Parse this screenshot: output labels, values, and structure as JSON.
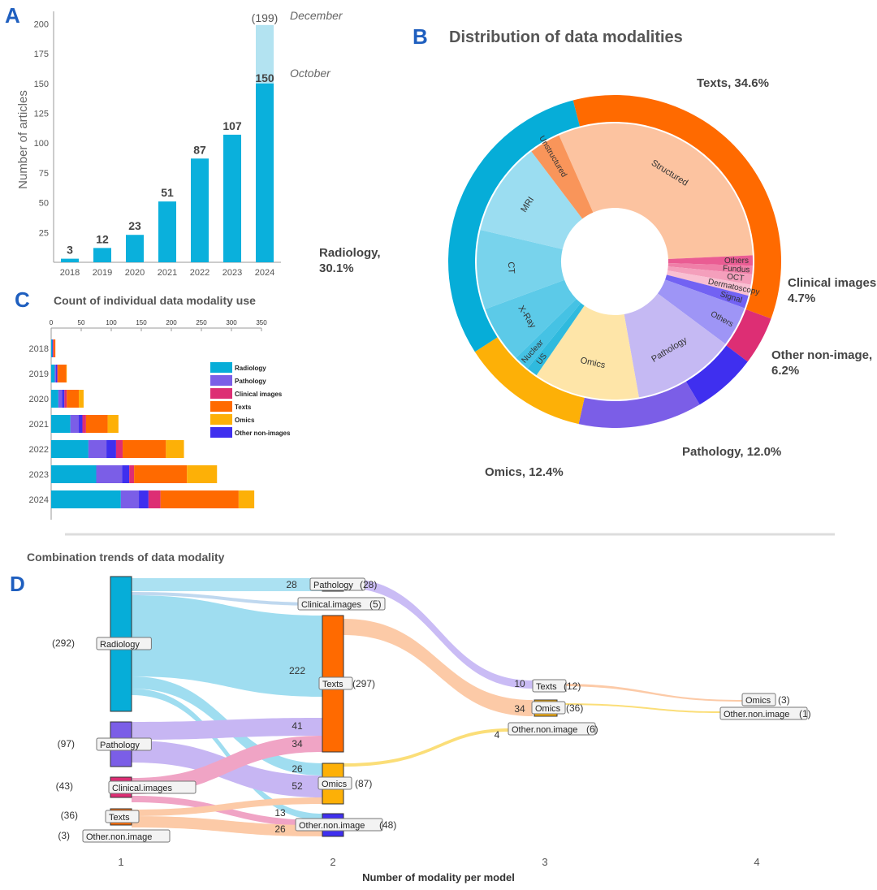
{
  "panels": {
    "A": "A",
    "B": "B",
    "C": "C",
    "D": "D"
  },
  "chart_data": [
    {
      "id": "A",
      "type": "bar",
      "title": "",
      "ylabel": "Number of articles",
      "categories": [
        "2018",
        "2019",
        "2020",
        "2021",
        "2022",
        "2023",
        "2024"
      ],
      "values": [
        3,
        12,
        23,
        51,
        87,
        107,
        150
      ],
      "value_labels": [
        "3",
        "12",
        "23",
        "51",
        "87",
        "107",
        "150"
      ],
      "extension": {
        "category": "2024",
        "value": 199,
        "label": "(199)",
        "annotation": "December",
        "color": "#b3e3f1"
      },
      "annotation_150": "October",
      "yticks": [
        25,
        50,
        75,
        100,
        125,
        150,
        175,
        200
      ],
      "ylim": [
        0,
        205
      ],
      "color": "#0ab0dc"
    },
    {
      "id": "B",
      "type": "pie",
      "title": "Distribution of data modalities",
      "outer": [
        {
          "name": "Texts",
          "label": "Texts, 34.6%",
          "value": 34.6,
          "color": "#ff6a00"
        },
        {
          "name": "Clinical images",
          "label": "Clinical images, 4.7%",
          "value": 4.7,
          "color": "#dd2e74"
        },
        {
          "name": "Other non-image",
          "label": "Other non-image, 6.2%",
          "value": 6.2,
          "color": "#3f2fef"
        },
        {
          "name": "Pathology",
          "label": "Pathology, 12.0%",
          "value": 12.0,
          "color": "#7b5ee7"
        },
        {
          "name": "Omics",
          "label": "Omics, 12.4%",
          "value": 12.4,
          "color": "#fdb007"
        },
        {
          "name": "Radiology",
          "label": "Radiology, 30.1%",
          "value": 30.1,
          "color": "#06add8"
        }
      ],
      "inner": [
        {
          "name": "Structured",
          "value": 30.9,
          "color": "#fcc3a0"
        },
        {
          "name": "Others",
          "value": 1.2,
          "color": "#ea5c93"
        },
        {
          "name": "Fundus",
          "value": 1.0,
          "color": "#f07fa8"
        },
        {
          "name": "OCT",
          "value": 1.2,
          "color": "#f49fbc"
        },
        {
          "name": "Dermatoscopy",
          "value": 1.3,
          "color": "#f9bfd2"
        },
        {
          "name": "Signal",
          "value": 1.5,
          "color": "#7262f3"
        },
        {
          "name": "Others",
          "value": 4.7,
          "color": "#9e95f6"
        },
        {
          "name": "Pathology",
          "value": 12.0,
          "color": "#c5b9f3"
        },
        {
          "name": "Omics",
          "value": 12.4,
          "color": "#fee5a8"
        },
        {
          "name": "US",
          "value": 1.3,
          "color": "#2fbade"
        },
        {
          "name": "Nuclear",
          "value": 1.8,
          "color": "#45c2e4"
        },
        {
          "name": "X-Ray",
          "value": 6.7,
          "color": "#5ccae8"
        },
        {
          "name": "CT",
          "value": 9.3,
          "color": "#78d3ec"
        },
        {
          "name": "MRI",
          "value": 11.0,
          "color": "#9bddf1"
        },
        {
          "name": "Unstructured",
          "value": 3.7,
          "color": "#f9955a"
        }
      ]
    },
    {
      "id": "C",
      "type": "bar",
      "orientation": "horizontal-stacked",
      "title": "Count of individual data modality use",
      "categories": [
        "2018",
        "2019",
        "2020",
        "2021",
        "2022",
        "2023",
        "2024"
      ],
      "xticks": [
        "0",
        "50",
        "100",
        "150",
        "200",
        "250",
        "300",
        "350"
      ],
      "xlim": [
        0,
        350
      ],
      "series": [
        {
          "name": "Radiology",
          "color": "#06add8",
          "values": [
            2,
            6,
            12,
            32,
            62,
            75,
            116
          ]
        },
        {
          "name": "Pathology",
          "color": "#7b5ee7",
          "values": [
            0,
            2,
            6,
            14,
            30,
            43,
            30
          ]
        },
        {
          "name": "Clinical images",
          "color": "#dd2e74",
          "values": [
            1,
            1,
            4,
            6,
            11,
            8,
            20
          ]
        },
        {
          "name": "Texts",
          "color": "#ff6a00",
          "values": [
            3,
            14,
            20,
            36,
            72,
            88,
            130
          ]
        },
        {
          "name": "Omics",
          "color": "#fdb007",
          "values": [
            0,
            1,
            8,
            18,
            30,
            50,
            26
          ]
        },
        {
          "name": "Other non-images",
          "color": "#3f2fef",
          "values": [
            1,
            2,
            4,
            6,
            16,
            12,
            16
          ]
        }
      ]
    },
    {
      "id": "D",
      "type": "sankey",
      "title": "Combination trends of data modality",
      "xlabel": "Number of modality per model",
      "stages": [
        "1",
        "2",
        "3",
        "4"
      ],
      "nodes": [
        {
          "label": "Radiology",
          "count": "(292)"
        },
        {
          "label": "Pathology",
          "count": "(97)"
        },
        {
          "label": "Clinical.images",
          "count": "(43)"
        },
        {
          "label": "Texts",
          "count": "(36)"
        },
        {
          "label": "Other.non.image",
          "count": "(3)"
        },
        {
          "label": "Pathology",
          "count": "(28)"
        },
        {
          "label": "Clinical.images",
          "count": "(5)"
        },
        {
          "label": "Texts",
          "count": "(297)"
        },
        {
          "label": "Omics",
          "count": "(87)"
        },
        {
          "label": "Other.non.image",
          "count": "(48)"
        },
        {
          "label": "Texts",
          "count": "(12)"
        },
        {
          "label": "Omics",
          "count": "(36)"
        },
        {
          "label": "Other.non.image",
          "count": "(6)"
        },
        {
          "label": "Omics",
          "count": "(3)"
        },
        {
          "label": "Other.non.image",
          "count": "(1)"
        }
      ],
      "flow_values": [
        "28",
        "222",
        "41",
        "34",
        "26",
        "52",
        "13",
        "26",
        "10",
        "34",
        "4"
      ]
    }
  ]
}
